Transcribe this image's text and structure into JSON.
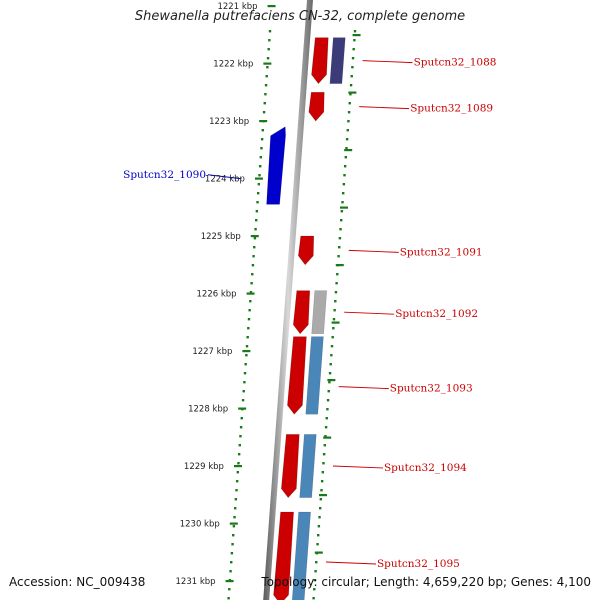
{
  "title": "Shewanella putrefaciens CN-32, complete genome",
  "accession": "Accession: NC_009438",
  "topology": "Topology: circular; Length: 4,659,220 bp; Genes: 4,100",
  "ticks": [
    "1221 kbp",
    "1222 kbp",
    "1223 kbp",
    "1224 kbp",
    "1225 kbp",
    "1226 kbp",
    "1227 kbp",
    "1228 kbp",
    "1229 kbp",
    "1230 kbp",
    "1231 kbp"
  ],
  "genes": [
    {
      "label": "Sputcn32_1088",
      "color": "#cc0000",
      "strand": "+",
      "start_kbp": 1221.55,
      "end_kbp": 1222.35,
      "partner_color": "#3b3b7a"
    },
    {
      "label": "Sputcn32_1089",
      "color": "#cc0000",
      "strand": "+",
      "start_kbp": 1222.5,
      "end_kbp": 1223.0
    },
    {
      "label": "Sputcn32_1090",
      "color": "#0000cc",
      "strand": "-",
      "start_kbp": 1223.1,
      "end_kbp": 1224.45
    },
    {
      "label": "Sputcn32_1091",
      "color": "#cc0000",
      "strand": "+",
      "start_kbp": 1225.0,
      "end_kbp": 1225.5
    },
    {
      "label": "Sputcn32_1092",
      "color": "#cc0000",
      "strand": "+",
      "start_kbp": 1225.95,
      "end_kbp": 1226.7,
      "partner_color": "#aaaaaa"
    },
    {
      "label": "Sputcn32_1093",
      "color": "#cc0000",
      "strand": "+",
      "start_kbp": 1226.75,
      "end_kbp": 1228.1,
      "partner_color": "#4a86b8"
    },
    {
      "label": "Sputcn32_1094",
      "color": "#cc0000",
      "strand": "+",
      "start_kbp": 1228.45,
      "end_kbp": 1229.55,
      "partner_color": "#4a86b8"
    },
    {
      "label": "Sputcn32_1095",
      "color": "#cc0000",
      "strand": "+",
      "start_kbp": 1229.8,
      "end_kbp": 1231.4,
      "partner_color": "#4a86b8"
    }
  ]
}
